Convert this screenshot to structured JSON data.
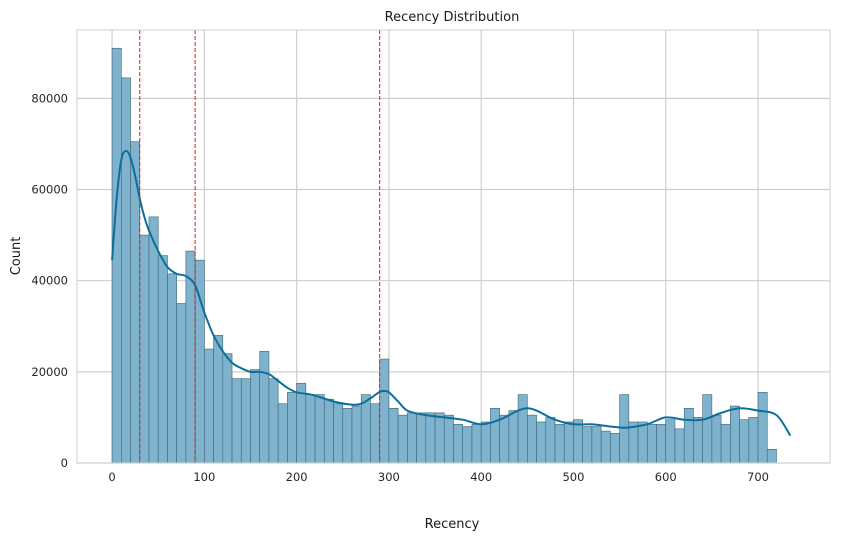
{
  "chart_data": {
    "type": "histogram",
    "title": "Recency Distribution",
    "xlabel": "Recency",
    "ylabel": "Count",
    "xlim": [
      -38,
      778
    ],
    "ylim": [
      0,
      95000
    ],
    "xticks": [
      0,
      100,
      200,
      300,
      400,
      500,
      600,
      700
    ],
    "yticks": [
      0,
      20000,
      40000,
      60000,
      80000
    ],
    "grid": true,
    "bin_start": 0,
    "bin_width": 10,
    "counts": [
      91000,
      84500,
      70500,
      50000,
      54000,
      45500,
      41500,
      35000,
      46500,
      44500,
      25000,
      28000,
      24000,
      18500,
      18500,
      20500,
      24500,
      18500,
      13000,
      15500,
      17500,
      15000,
      15000,
      14000,
      13000,
      12000,
      12500,
      15000,
      13000,
      22800,
      12000,
      10500,
      11000,
      11000,
      11000,
      11000,
      10500,
      8500,
      8000,
      8500,
      9000,
      12000,
      10500,
      11500,
      15000,
      10500,
      9000,
      10000,
      8500,
      9000,
      9500,
      8000,
      8000,
      7000,
      6500,
      15000,
      9000,
      9000,
      8500,
      8500,
      9500,
      7500,
      12000,
      10000,
      15000,
      10500,
      8500,
      12500,
      9500,
      10000,
      15500,
      3000
    ],
    "kde": {
      "x": [
        0,
        5,
        10,
        15,
        20,
        25,
        30,
        35,
        40,
        50,
        60,
        70,
        80,
        90,
        100,
        110,
        120,
        130,
        140,
        150,
        160,
        170,
        180,
        190,
        200,
        210,
        220,
        240,
        260,
        270,
        280,
        290,
        295,
        300,
        310,
        320,
        340,
        360,
        380,
        400,
        420,
        440,
        450,
        460,
        480,
        500,
        520,
        540,
        550,
        560,
        580,
        600,
        620,
        640,
        660,
        680,
        700,
        720,
        735
      ],
      "y": [
        44500,
        58000,
        66500,
        68500,
        67000,
        63000,
        58000,
        54000,
        51000,
        46500,
        43000,
        41500,
        41000,
        39000,
        33000,
        28000,
        24500,
        22000,
        20800,
        20000,
        20000,
        19500,
        18000,
        16500,
        15500,
        15200,
        14800,
        13500,
        12800,
        13000,
        14200,
        15600,
        15800,
        15500,
        13500,
        11500,
        10500,
        10000,
        9500,
        8500,
        9500,
        11500,
        12000,
        11500,
        9500,
        8500,
        8500,
        8000,
        7800,
        7800,
        8500,
        10000,
        9500,
        9500,
        11000,
        12000,
        11500,
        10500,
        6000
      ]
    },
    "vlines": [
      30,
      90,
      290
    ],
    "colors": {
      "bar_fill": "#7fb3cd",
      "bar_edge": "#3c6478",
      "kde_line": "#0c6f9a",
      "vline": "#cc2222",
      "grid": "#cfcfcf",
      "frame": "#cfcfcf"
    }
  }
}
